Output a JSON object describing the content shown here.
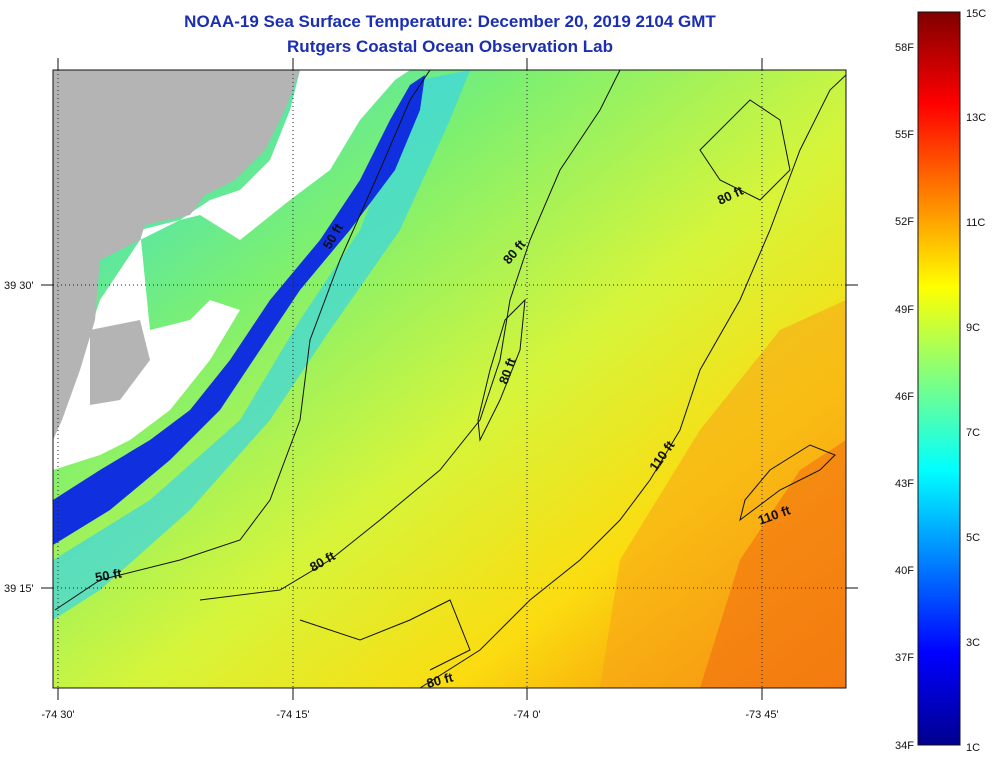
{
  "title": "NOAA-19 Sea Surface Temperature:  December 20, 2019 2104 GMT",
  "subtitle": "Rutgers Coastal Ocean Observation Lab",
  "axes": {
    "lon_labels": [
      "-74 30'",
      "-74 15'",
      "-74 0'",
      "-73 45'"
    ],
    "lat_labels": [
      "39 30'",
      "39 15'"
    ]
  },
  "contour_labels": [
    "50 ft",
    "50 ft",
    "80 ft",
    "80 ft",
    "80 ft",
    "80 ft",
    "80 ft",
    "110 ft",
    "110 ft"
  ],
  "colorbar": {
    "celsius_labels": [
      "15C",
      "13C",
      "11C",
      "9C",
      "7C",
      "5C",
      "3C",
      "1C"
    ],
    "fahrenheit_labels": [
      "58F",
      "55F",
      "52F",
      "49F",
      "46F",
      "43F",
      "40F",
      "37F",
      "34F"
    ],
    "colors": [
      "#00008f",
      "#0000ff",
      "#0080ff",
      "#00ffff",
      "#80ff80",
      "#ffff00",
      "#ff8000",
      "#ff0000",
      "#800000"
    ]
  },
  "colors": {
    "land": "#b4b4b4",
    "cloud": "#ffffff",
    "title": "#1b2fb0"
  }
}
